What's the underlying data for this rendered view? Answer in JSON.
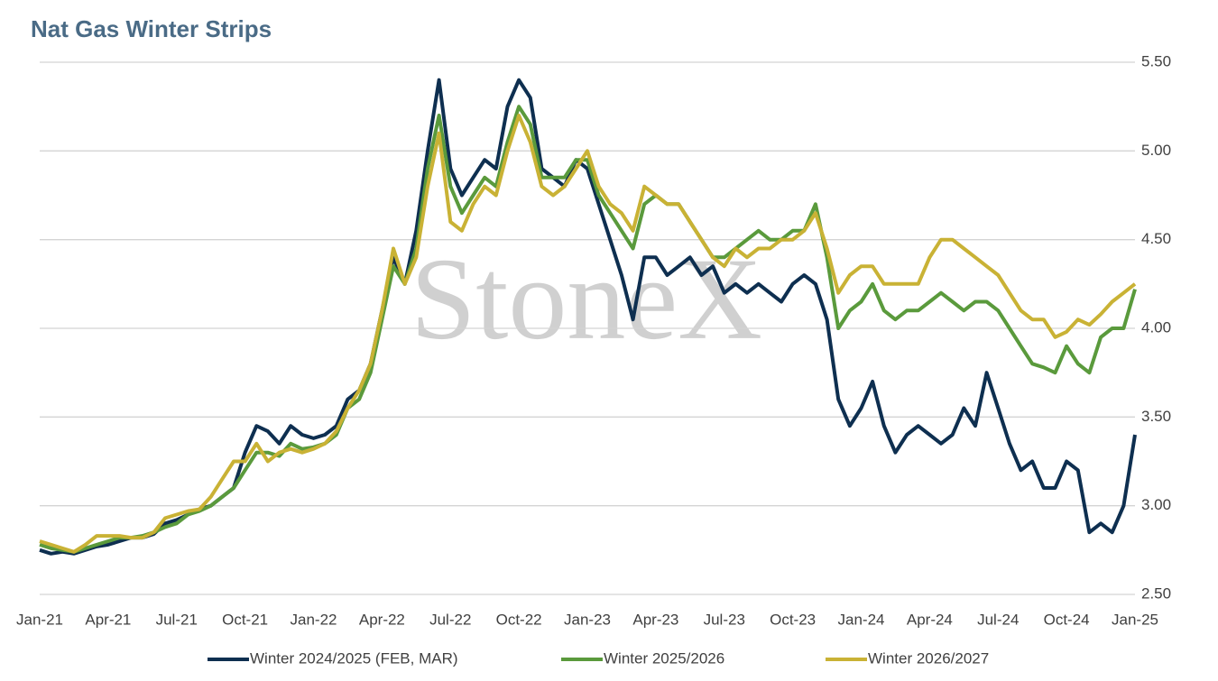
{
  "chart_data": {
    "type": "line",
    "title": "Nat Gas Winter Strips",
    "watermark": "StoneX",
    "x": [
      0,
      0.5,
      1,
      1.5,
      2,
      2.5,
      3,
      3.5,
      4,
      4.5,
      5,
      5.5,
      6,
      6.5,
      7,
      7.5,
      8,
      8.5,
      9,
      9.5,
      10,
      10.5,
      11,
      11.5,
      12,
      12.5,
      13,
      13.5,
      14,
      14.5,
      15,
      15.5,
      16,
      16.5,
      17,
      17.5,
      18,
      18.5,
      19,
      19.5,
      20,
      20.5,
      21,
      21.5,
      22,
      22.5,
      23,
      23.5,
      24,
      24.5,
      25,
      25.5,
      26,
      26.5,
      27,
      27.5,
      28,
      28.5,
      29,
      29.5,
      30,
      30.5,
      31,
      31.5,
      32,
      32.5,
      33,
      33.5,
      34,
      34.5,
      35,
      35.5,
      36,
      36.5,
      37,
      37.5,
      38,
      38.5,
      39,
      39.5,
      40,
      40.5,
      41,
      41.5,
      42,
      42.5,
      43,
      43.5,
      44,
      44.5,
      45,
      45.5,
      46,
      46.5,
      47,
      47.5,
      48
    ],
    "xlim": [
      0,
      48
    ],
    "xticks": [
      {
        "value": 0,
        "label": "Jan-21"
      },
      {
        "value": 3,
        "label": "Apr-21"
      },
      {
        "value": 6,
        "label": "Jul-21"
      },
      {
        "value": 9,
        "label": "Oct-21"
      },
      {
        "value": 12,
        "label": "Jan-22"
      },
      {
        "value": 15,
        "label": "Apr-22"
      },
      {
        "value": 18,
        "label": "Jul-22"
      },
      {
        "value": 21,
        "label": "Oct-22"
      },
      {
        "value": 24,
        "label": "Jan-23"
      },
      {
        "value": 27,
        "label": "Apr-23"
      },
      {
        "value": 30,
        "label": "Jul-23"
      },
      {
        "value": 33,
        "label": "Oct-23"
      },
      {
        "value": 36,
        "label": "Jan-24"
      },
      {
        "value": 39,
        "label": "Apr-24"
      },
      {
        "value": 42,
        "label": "Jul-24"
      },
      {
        "value": 45,
        "label": "Oct-24"
      },
      {
        "value": 48,
        "label": "Jan-25"
      }
    ],
    "ylim": [
      2.5,
      5.5
    ],
    "yticks": [
      {
        "value": 2.5,
        "label": "2.50"
      },
      {
        "value": 3,
        "label": "3.00"
      },
      {
        "value": 3.5,
        "label": "3.50"
      },
      {
        "value": 4,
        "label": "4.00"
      },
      {
        "value": 4.5,
        "label": "4.50"
      },
      {
        "value": 5,
        "label": "5.00"
      },
      {
        "value": 5.5,
        "label": "5.50"
      }
    ],
    "grid": true,
    "series": [
      {
        "name": "Winter 2024/2025 (FEB, MAR)",
        "color": "#0e2f50",
        "values": [
          2.75,
          2.73,
          2.74,
          2.73,
          2.75,
          2.77,
          2.78,
          2.8,
          2.82,
          2.82,
          2.84,
          2.9,
          2.92,
          2.95,
          2.98,
          3.0,
          3.05,
          3.1,
          3.3,
          3.45,
          3.42,
          3.35,
          3.45,
          3.4,
          3.38,
          3.4,
          3.45,
          3.6,
          3.65,
          3.8,
          4.1,
          4.4,
          4.25,
          4.55,
          5.0,
          5.4,
          4.9,
          4.75,
          4.85,
          4.95,
          4.9,
          5.25,
          5.4,
          5.3,
          4.9,
          4.85,
          4.8,
          4.95,
          4.9,
          4.7,
          4.5,
          4.3,
          4.05,
          4.4,
          4.4,
          4.3,
          4.35,
          4.4,
          4.3,
          4.35,
          4.2,
          4.25,
          4.2,
          4.25,
          4.2,
          4.15,
          4.25,
          4.3,
          4.25,
          4.05,
          3.6,
          3.45,
          3.55,
          3.7,
          3.45,
          3.3,
          3.4,
          3.45,
          3.4,
          3.35,
          3.4,
          3.55,
          3.45,
          3.75,
          3.55,
          3.35,
          3.2,
          3.25,
          3.1,
          3.1,
          3.25,
          3.2,
          2.85,
          2.9,
          2.85,
          3.0,
          3.4
        ]
      },
      {
        "name": "Winter 2025/2026",
        "color": "#5a9a3c",
        "values": [
          2.78,
          2.76,
          2.75,
          2.74,
          2.76,
          2.78,
          2.8,
          2.82,
          2.82,
          2.83,
          2.85,
          2.88,
          2.9,
          2.95,
          2.97,
          3.0,
          3.05,
          3.1,
          3.2,
          3.3,
          3.3,
          3.28,
          3.35,
          3.32,
          3.33,
          3.35,
          3.4,
          3.55,
          3.6,
          3.75,
          4.05,
          4.35,
          4.25,
          4.45,
          4.9,
          5.2,
          4.8,
          4.65,
          4.75,
          4.85,
          4.8,
          5.05,
          5.25,
          5.15,
          4.85,
          4.85,
          4.85,
          4.95,
          4.95,
          4.75,
          4.65,
          4.55,
          4.45,
          4.7,
          4.75,
          4.7,
          4.7,
          4.6,
          4.5,
          4.4,
          4.4,
          4.45,
          4.5,
          4.55,
          4.5,
          4.5,
          4.55,
          4.55,
          4.7,
          4.4,
          4.0,
          4.1,
          4.15,
          4.25,
          4.1,
          4.05,
          4.1,
          4.1,
          4.15,
          4.2,
          4.15,
          4.1,
          4.15,
          4.15,
          4.1,
          4.0,
          3.9,
          3.8,
          3.78,
          3.75,
          3.9,
          3.8,
          3.75,
          3.95,
          4.0,
          4.0,
          4.22
        ]
      },
      {
        "name": "Winter 2026/2027",
        "color": "#c9b235",
        "values": [
          2.8,
          2.78,
          2.76,
          2.74,
          2.78,
          2.83,
          2.83,
          2.83,
          2.82,
          2.82,
          2.85,
          2.93,
          2.95,
          2.97,
          2.98,
          3.05,
          3.15,
          3.25,
          3.25,
          3.35,
          3.25,
          3.3,
          3.32,
          3.3,
          3.32,
          3.35,
          3.42,
          3.55,
          3.65,
          3.8,
          4.1,
          4.45,
          4.25,
          4.4,
          4.8,
          5.1,
          4.6,
          4.55,
          4.7,
          4.8,
          4.75,
          5.0,
          5.2,
          5.05,
          4.8,
          4.75,
          4.8,
          4.9,
          5.0,
          4.8,
          4.7,
          4.65,
          4.55,
          4.8,
          4.75,
          4.7,
          4.7,
          4.6,
          4.5,
          4.4,
          4.35,
          4.45,
          4.4,
          4.45,
          4.45,
          4.5,
          4.5,
          4.55,
          4.65,
          4.45,
          4.2,
          4.3,
          4.35,
          4.35,
          4.25,
          4.25,
          4.25,
          4.25,
          4.4,
          4.5,
          4.5,
          4.45,
          4.4,
          4.35,
          4.3,
          4.2,
          4.1,
          4.05,
          4.05,
          3.95,
          3.98,
          4.05,
          4.02,
          4.08,
          4.15,
          4.2,
          4.25
        ]
      }
    ]
  }
}
